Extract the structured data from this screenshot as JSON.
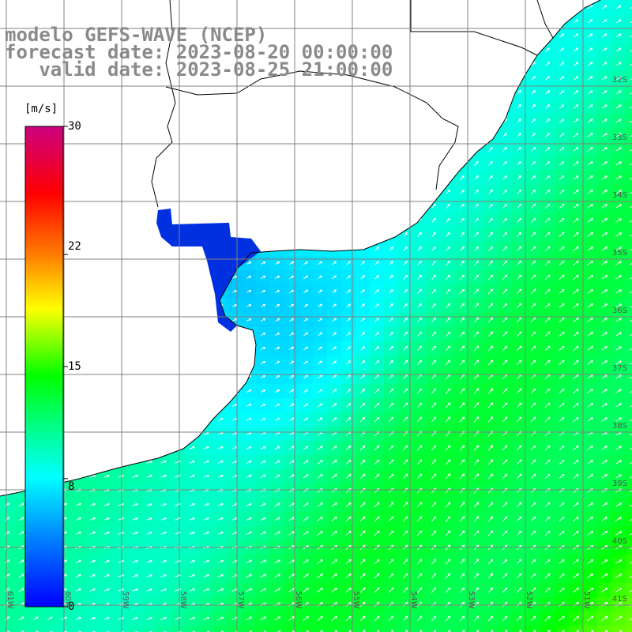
{
  "title": {
    "line1": "modelo GEFS-WAVE (NCEP)",
    "line2": "forecast date: 2023-08-20 00:00:00",
    "line3": "   valid date: 2023-08-25 21:00:00"
  },
  "colorbar": {
    "unit": "[m/s]",
    "ticks": [
      "30",
      "22",
      "15",
      "8",
      "0"
    ],
    "tick_values": [
      30,
      22,
      15,
      8,
      0
    ],
    "range": [
      0,
      30
    ],
    "colors": [
      "#0000ff",
      "#0080ff",
      "#00ffff",
      "#00ff00",
      "#ffff00",
      "#ff8000",
      "#ff0000",
      "#cc0080"
    ]
  },
  "map": {
    "variable": "wind speed",
    "arrow_direction": "toward north-east",
    "land_color": "#ffffff",
    "grid_color": "#808080",
    "lat_labels": [
      "32S",
      "33S",
      "34S",
      "35S",
      "36S",
      "37S",
      "38S",
      "39S",
      "40S",
      "41S"
    ],
    "lon_labels": [
      "61W",
      "60W",
      "59W",
      "58W",
      "57W",
      "56W",
      "55W",
      "54W",
      "53W",
      "52W",
      "51W"
    ]
  }
}
